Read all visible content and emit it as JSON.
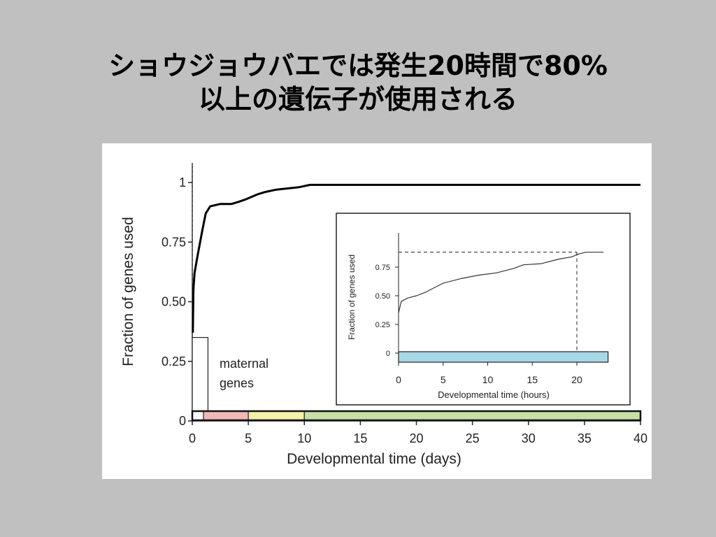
{
  "slide": {
    "title_line1": "ショウジョウバエでは発生20時間で80%",
    "title_line2": "以上の遺伝子が使用される"
  },
  "colors": {
    "background": "#c0c0c0",
    "figure_bg": "#ffffff",
    "curve": "#000000",
    "bar_maternal": "#ffffff",
    "bar_pink": "#f2b8b8",
    "bar_yellow": "#f5f0a8",
    "bar_green": "#c8e0a6",
    "inset_bar": "#a8d8e8"
  },
  "chart_data": [
    {
      "type": "line",
      "xlabel": "Developmental time (days)",
      "ylabel": "Fraction of genes used",
      "xlim": [
        0,
        40
      ],
      "ylim": [
        0,
        1.05
      ],
      "xticks": [
        "0",
        "5",
        "10",
        "15",
        "20",
        "25",
        "30",
        "35",
        "40"
      ],
      "yticks": [
        {
          "value": 0,
          "label": "0"
        },
        {
          "value": 0.25,
          "label": "0.25"
        },
        {
          "value": 0.5,
          "label": "0.50"
        },
        {
          "value": 0.75,
          "label": "0.75"
        },
        {
          "value": 1,
          "label": "1"
        }
      ],
      "grid": false,
      "annotation": {
        "line1": "maternal",
        "line2": "genes"
      },
      "series": [
        {
          "x": [
            0.05,
            0.1,
            0.2,
            0.35,
            0.5,
            0.7,
            0.9,
            1.2,
            1.6,
            2.5,
            3.5,
            4.2,
            4.8,
            5.3,
            5.8,
            6.5,
            7.5,
            8.5,
            9.5,
            10.5,
            15,
            20,
            25,
            30,
            35,
            40
          ],
          "y": [
            0.37,
            0.55,
            0.62,
            0.66,
            0.7,
            0.75,
            0.8,
            0.87,
            0.9,
            0.91,
            0.91,
            0.92,
            0.93,
            0.94,
            0.95,
            0.96,
            0.97,
            0.975,
            0.98,
            0.99,
            0.99,
            0.99,
            0.99,
            0.99,
            0.99,
            0.99
          ]
        }
      ],
      "maternal_bar": {
        "x_end": 1.4,
        "height": 0.35
      },
      "stage_bar": [
        {
          "start": 0,
          "end": 1,
          "color": "#ffffff"
        },
        {
          "start": 1,
          "end": 5,
          "color": "#f2b8b8"
        },
        {
          "start": 5,
          "end": 10,
          "color": "#f5f0a8"
        },
        {
          "start": 10,
          "end": 40,
          "color": "#c8e0a6"
        }
      ]
    },
    {
      "type": "line",
      "xlabel": "Developmental time (hours)",
      "ylabel": "Fraction of genes used",
      "xlim": [
        0,
        24
      ],
      "ylim": [
        0,
        1.0
      ],
      "xticks": [
        "0",
        "5",
        "10",
        "15",
        "20"
      ],
      "yticks": [
        {
          "value": 0,
          "label": "0"
        },
        {
          "value": 0.25,
          "label": "0.25"
        },
        {
          "value": 0.5,
          "label": "0.50"
        },
        {
          "value": 0.75,
          "label": "0.75"
        }
      ],
      "grid": false,
      "series": [
        {
          "x": [
            0,
            0.3,
            1,
            2,
            3,
            4,
            5,
            7,
            9,
            11,
            13,
            14,
            16,
            18,
            19.5,
            20,
            20.5,
            21,
            23
          ],
          "y": [
            0.35,
            0.45,
            0.48,
            0.5,
            0.53,
            0.57,
            0.61,
            0.65,
            0.68,
            0.7,
            0.74,
            0.77,
            0.78,
            0.82,
            0.84,
            0.86,
            0.87,
            0.88,
            0.88
          ]
        }
      ],
      "reference": {
        "x": 20,
        "y": 0.88
      },
      "bar": {
        "start": 0,
        "end": 23.5,
        "color": "#a8d8e8"
      }
    }
  ]
}
